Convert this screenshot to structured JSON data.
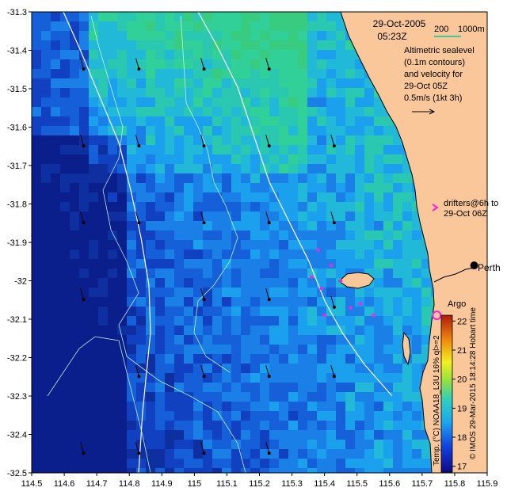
{
  "map": {
    "date": "29-Oct-2005",
    "time": "05:23Z",
    "scale_labels": [
      "200",
      "1000m"
    ],
    "legend_lines": [
      "Altimetric sealevel",
      "(0.1m contours)",
      "and velocity for",
      "29-Oct 05Z",
      "0.5m/s (1kt 3h)"
    ],
    "drifters_lines": [
      "drifters@6h to",
      "29-Oct 06Z"
    ],
    "places": {
      "perth": "Perth",
      "argo": "Argo"
    },
    "credit": "© IMOS 29-Mar-2015 18:14:28 Hobart time",
    "colorbar_caption": "Temp. (°C) NOAA18_L3U 16% ql>=2",
    "colorbar_ticks": [
      "17",
      "18",
      "19",
      "20",
      "21",
      "22"
    ],
    "colorbar_range": [
      16.8,
      22.2
    ],
    "x_ticks": [
      "114.5",
      "114.6",
      "114.7",
      "114.8",
      "114.9",
      "115",
      "115.1",
      "115.2",
      "115.3",
      "115.4",
      "115.5",
      "115.6",
      "115.7",
      "115.8",
      "115.9"
    ],
    "y_ticks": [
      "-31.3",
      "-31.4",
      "-31.5",
      "-31.6",
      "-31.7",
      "-31.8",
      "-31.9",
      "-32",
      "-32.1",
      "-32.2",
      "-32.3",
      "-32.4",
      "-32.5"
    ],
    "lon_range": [
      114.5,
      115.9
    ],
    "lat_range": [
      -32.5,
      -31.3
    ],
    "colors": {
      "land": "#f9c79a",
      "deep": "#0d2fa0",
      "mid": "#1a8ee8",
      "shelf": "#2bc49a",
      "drifter": "#ff22dd",
      "argo": "#ff22dd",
      "contour": "#c8fff0"
    },
    "velocity_vectors": [
      {
        "lon": 114.65,
        "lat": -31.42
      },
      {
        "lon": 114.82,
        "lat": -31.42
      },
      {
        "lon": 115.02,
        "lat": -31.42
      },
      {
        "lon": 115.22,
        "lat": -31.42
      },
      {
        "lon": 114.65,
        "lat": -31.62
      },
      {
        "lon": 114.82,
        "lat": -31.62
      },
      {
        "lon": 115.02,
        "lat": -31.62
      },
      {
        "lon": 115.22,
        "lat": -31.62
      },
      {
        "lon": 115.42,
        "lat": -31.62
      },
      {
        "lon": 114.65,
        "lat": -31.82
      },
      {
        "lon": 114.82,
        "lat": -31.82
      },
      {
        "lon": 115.02,
        "lat": -31.82
      },
      {
        "lon": 115.22,
        "lat": -31.82
      },
      {
        "lon": 115.42,
        "lat": -31.82
      },
      {
        "lon": 114.65,
        "lat": -32.02
      },
      {
        "lon": 115.02,
        "lat": -32.02
      },
      {
        "lon": 115.22,
        "lat": -32.02
      },
      {
        "lon": 115.42,
        "lat": -32.04
      },
      {
        "lon": 114.82,
        "lat": -32.22
      },
      {
        "lon": 115.02,
        "lat": -32.22
      },
      {
        "lon": 115.22,
        "lat": -32.22
      },
      {
        "lon": 115.42,
        "lat": -32.22
      },
      {
        "lon": 114.65,
        "lat": -32.42
      },
      {
        "lon": 114.82,
        "lat": -32.42
      },
      {
        "lon": 115.02,
        "lat": -32.42
      },
      {
        "lon": 115.22,
        "lat": -32.42
      }
    ],
    "drifter_points": [
      {
        "lon": 115.38,
        "lat": -31.92
      },
      {
        "lon": 115.42,
        "lat": -31.96
      },
      {
        "lon": 115.36,
        "lat": -31.99
      },
      {
        "lon": 115.39,
        "lat": -32.02
      },
      {
        "lon": 115.45,
        "lat": -32.0
      },
      {
        "lon": 115.48,
        "lat": -32.07
      },
      {
        "lon": 115.51,
        "lat": -32.06
      },
      {
        "lon": 115.55,
        "lat": -32.09
      },
      {
        "lon": 115.4,
        "lat": -32.09
      }
    ],
    "argo_position": {
      "lon": 115.745,
      "lat": -32.09
    },
    "perth_position": {
      "lon": 115.86,
      "lat": -31.96
    }
  }
}
